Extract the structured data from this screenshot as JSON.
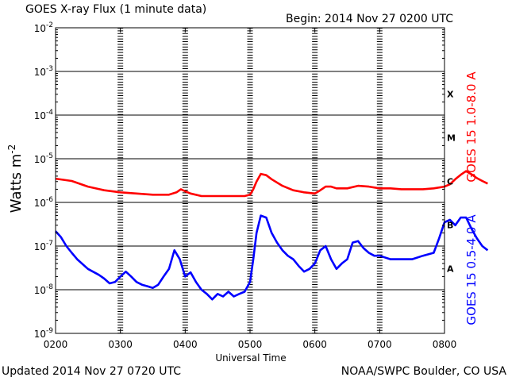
{
  "chart_data": {
    "type": "line",
    "title": "GOES X-ray Flux (1 minute data)",
    "begin": "Begin: 2014 Nov 27 0200 UTC",
    "updated": "Updated 2014 Nov 27 0720 UTC",
    "credit": "NOAA/SWPC Boulder, CO USA",
    "xlabel": "Universal Time",
    "ylabel": "Watts m",
    "ylabel_exp": "-2",
    "y_scale": "log",
    "ylim": [
      1e-09,
      0.01
    ],
    "x_ticks": [
      "0200",
      "0300",
      "0400",
      "0500",
      "0600",
      "0700",
      "0800"
    ],
    "y_ticks": [
      {
        "base": "10",
        "exp": "-2"
      },
      {
        "base": "10",
        "exp": "-3"
      },
      {
        "base": "10",
        "exp": "-4"
      },
      {
        "base": "10",
        "exp": "-5"
      },
      {
        "base": "10",
        "exp": "-6"
      },
      {
        "base": "10",
        "exp": "-7"
      },
      {
        "base": "10",
        "exp": "-8"
      },
      {
        "base": "10",
        "exp": "-9"
      }
    ],
    "flare_classes": [
      "X",
      "M",
      "C",
      "B",
      "A"
    ],
    "grid": "horizontal lines at each decade, dotted vertical lines at each hour",
    "series": [
      {
        "name": "GOES 15 1.0-8.0 A",
        "color": "#ff0000",
        "points": [
          [
            "0200",
            3.5e-06
          ],
          [
            "0215",
            3.1e-06
          ],
          [
            "0230",
            2.3e-06
          ],
          [
            "0245",
            1.9e-06
          ],
          [
            "0300",
            1.7e-06
          ],
          [
            "0315",
            1.6e-06
          ],
          [
            "0330",
            1.5e-06
          ],
          [
            "0345",
            1.5e-06
          ],
          [
            "0352",
            1.7e-06
          ],
          [
            "0356",
            2e-06
          ],
          [
            "0400",
            1.8e-06
          ],
          [
            "0405",
            1.6e-06
          ],
          [
            "0415",
            1.4e-06
          ],
          [
            "0430",
            1.4e-06
          ],
          [
            "0445",
            1.4e-06
          ],
          [
            "0455",
            1.4e-06
          ],
          [
            "0500",
            1.5e-06
          ],
          [
            "0503",
            2e-06
          ],
          [
            "0506",
            3e-06
          ],
          [
            "0510",
            4.5e-06
          ],
          [
            "0515",
            4.2e-06
          ],
          [
            "0520",
            3.4e-06
          ],
          [
            "0530",
            2.4e-06
          ],
          [
            "0540",
            1.9e-06
          ],
          [
            "0550",
            1.7e-06
          ],
          [
            "0600",
            1.6e-06
          ],
          [
            "0605",
            1.9e-06
          ],
          [
            "0610",
            2.3e-06
          ],
          [
            "0615",
            2.3e-06
          ],
          [
            "0620",
            2.1e-06
          ],
          [
            "0630",
            2.1e-06
          ],
          [
            "0640",
            2.4e-06
          ],
          [
            "0650",
            2.3e-06
          ],
          [
            "0700",
            2.1e-06
          ],
          [
            "0710",
            2.1e-06
          ],
          [
            "0720",
            2e-06
          ],
          [
            "0730",
            2e-06
          ],
          [
            "0740",
            2e-06
          ],
          [
            "0750",
            2.1e-06
          ],
          [
            "0800",
            2.3e-06
          ],
          [
            "0805",
            2.6e-06
          ],
          [
            "0810",
            3.4e-06
          ],
          [
            "0815",
            4.3e-06
          ],
          [
            "0820",
            5.2e-06
          ],
          [
            "0825",
            4.4e-06
          ],
          [
            "0830",
            3.6e-06
          ],
          [
            "0835",
            3.1e-06
          ],
          [
            "0840",
            2.7e-06
          ]
        ]
      },
      {
        "name": "GOES 15 0.5-4.0 A",
        "color": "#0000ff",
        "points": [
          [
            "0200",
            2.2e-07
          ],
          [
            "0205",
            1.6e-07
          ],
          [
            "0210",
            1e-07
          ],
          [
            "0215",
            7e-08
          ],
          [
            "0220",
            5e-08
          ],
          [
            "0230",
            3e-08
          ],
          [
            "0240",
            2.2e-08
          ],
          [
            "0245",
            1.8e-08
          ],
          [
            "0250",
            1.4e-08
          ],
          [
            "0255",
            1.5e-08
          ],
          [
            "0300",
            2e-08
          ],
          [
            "0305",
            2.6e-08
          ],
          [
            "0310",
            2e-08
          ],
          [
            "0315",
            1.5e-08
          ],
          [
            "0320",
            1.3e-08
          ],
          [
            "0325",
            1.2e-08
          ],
          [
            "0330",
            1.1e-08
          ],
          [
            "0335",
            1.3e-08
          ],
          [
            "0340",
            2e-08
          ],
          [
            "0345",
            3e-08
          ],
          [
            "0350",
            8e-08
          ],
          [
            "0355",
            5e-08
          ],
          [
            "0400",
            2e-08
          ],
          [
            "0405",
            2.5e-08
          ],
          [
            "0410",
            1.5e-08
          ],
          [
            "0415",
            1e-08
          ],
          [
            "0420",
            8e-09
          ],
          [
            "0425",
            6e-09
          ],
          [
            "0430",
            8e-09
          ],
          [
            "0435",
            7e-09
          ],
          [
            "0440",
            9e-09
          ],
          [
            "0445",
            7e-09
          ],
          [
            "0450",
            8e-09
          ],
          [
            "0455",
            9e-09
          ],
          [
            "0500",
            1.5e-08
          ],
          [
            "0503",
            5e-08
          ],
          [
            "0506",
            2e-07
          ],
          [
            "0510",
            5e-07
          ],
          [
            "0515",
            4.5e-07
          ],
          [
            "0520",
            2e-07
          ],
          [
            "0525",
            1.2e-07
          ],
          [
            "0530",
            8e-08
          ],
          [
            "0535",
            6e-08
          ],
          [
            "0540",
            5e-08
          ],
          [
            "0545",
            3.5e-08
          ],
          [
            "0550",
            2.6e-08
          ],
          [
            "0555",
            3e-08
          ],
          [
            "0600",
            4e-08
          ],
          [
            "0605",
            8e-08
          ],
          [
            "0610",
            1e-07
          ],
          [
            "0615",
            5e-08
          ],
          [
            "0620",
            3e-08
          ],
          [
            "0625",
            4e-08
          ],
          [
            "0630",
            5e-08
          ],
          [
            "0635",
            1.2e-07
          ],
          [
            "0640",
            1.3e-07
          ],
          [
            "0645",
            9e-08
          ],
          [
            "0650",
            7e-08
          ],
          [
            "0655",
            6e-08
          ],
          [
            "0700",
            6e-08
          ],
          [
            "0710",
            5e-08
          ],
          [
            "0720",
            5e-08
          ],
          [
            "0730",
            5e-08
          ],
          [
            "0740",
            6e-08
          ],
          [
            "0750",
            7e-08
          ],
          [
            "0755",
            1.5e-07
          ],
          [
            "0800",
            3.5e-07
          ],
          [
            "0805",
            4e-07
          ],
          [
            "0810",
            3e-07
          ],
          [
            "0815",
            4.5e-07
          ],
          [
            "0820",
            4.5e-07
          ],
          [
            "0825",
            2.5e-07
          ],
          [
            "0830",
            1.5e-07
          ],
          [
            "0835",
            1e-07
          ],
          [
            "0840",
            8e-08
          ]
        ]
      }
    ]
  }
}
